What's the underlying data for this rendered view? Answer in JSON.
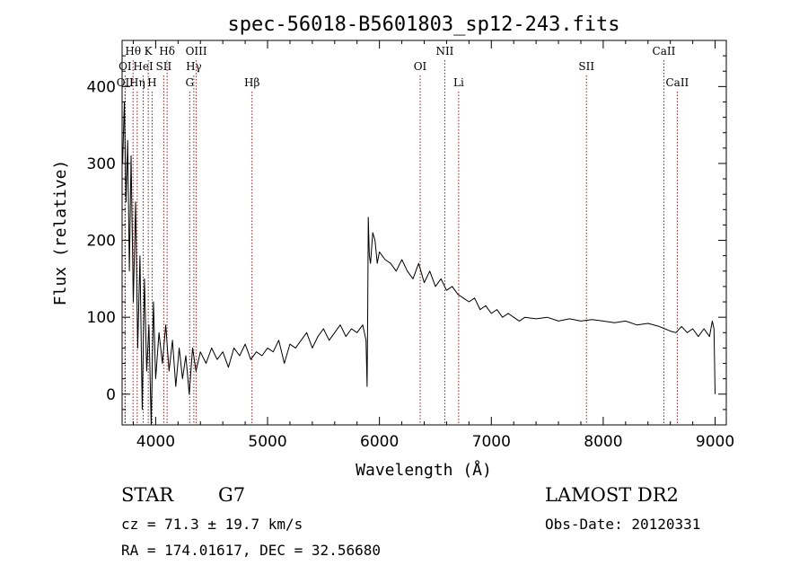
{
  "chart_data": {
    "type": "line",
    "title": "spec-56018-B5601803_sp12-243.fits",
    "xlabel": "Wavelength (Å)",
    "ylabel": "Flux (relative)",
    "xlim": [
      3700,
      9100
    ],
    "ylim": [
      -40,
      460
    ],
    "x_ticks": [
      4000,
      5000,
      6000,
      7000,
      8000,
      9000
    ],
    "y_ticks": [
      0,
      100,
      200,
      300,
      400
    ],
    "x_minor_step": 200,
    "y_minor_step": 20,
    "spectrum": {
      "x": [
        3705,
        3720,
        3735,
        3750,
        3765,
        3780,
        3800,
        3820,
        3840,
        3860,
        3880,
        3900,
        3920,
        3940,
        3960,
        3980,
        4000,
        4030,
        4060,
        4090,
        4120,
        4150,
        4180,
        4210,
        4240,
        4270,
        4300,
        4330,
        4360,
        4400,
        4450,
        4500,
        4550,
        4600,
        4650,
        4700,
        4750,
        4800,
        4850,
        4900,
        4950,
        5000,
        5050,
        5100,
        5150,
        5200,
        5250,
        5300,
        5350,
        5400,
        5450,
        5500,
        5550,
        5600,
        5650,
        5700,
        5750,
        5800,
        5850,
        5880,
        5890,
        5895,
        5900,
        5910,
        5920,
        5940,
        5960,
        5980,
        6000,
        6050,
        6100,
        6150,
        6200,
        6250,
        6300,
        6350,
        6400,
        6450,
        6500,
        6550,
        6600,
        6650,
        6700,
        6750,
        6800,
        6850,
        6900,
        6950,
        7000,
        7050,
        7100,
        7150,
        7200,
        7250,
        7300,
        7400,
        7500,
        7600,
        7700,
        7800,
        7900,
        8000,
        8100,
        8200,
        8300,
        8400,
        8500,
        8550,
        8600,
        8650,
        8700,
        8750,
        8800,
        8850,
        8900,
        8950,
        8975,
        8990,
        9000
      ],
      "y": [
        300,
        380,
        250,
        330,
        160,
        310,
        120,
        250,
        60,
        180,
        -20,
        150,
        30,
        90,
        -40,
        120,
        20,
        80,
        40,
        90,
        30,
        70,
        10,
        60,
        20,
        50,
        0,
        60,
        30,
        55,
        40,
        60,
        45,
        55,
        35,
        60,
        50,
        65,
        45,
        55,
        50,
        60,
        55,
        70,
        40,
        65,
        60,
        70,
        80,
        60,
        75,
        85,
        70,
        80,
        90,
        75,
        85,
        80,
        90,
        70,
        10,
        110,
        230,
        180,
        170,
        210,
        200,
        170,
        185,
        175,
        170,
        160,
        175,
        160,
        150,
        170,
        145,
        160,
        140,
        150,
        135,
        140,
        130,
        125,
        120,
        125,
        110,
        115,
        105,
        110,
        100,
        105,
        100,
        95,
        100,
        98,
        100,
        95,
        98,
        95,
        97,
        95,
        93,
        95,
        90,
        92,
        88,
        85,
        82,
        80,
        88,
        80,
        85,
        75,
        85,
        75,
        95,
        85,
        0
      ]
    },
    "lines": [
      {
        "label": "Hθ",
        "x": 3798,
        "row": 0
      },
      {
        "label": "K",
        "x": 3934,
        "row": 0
      },
      {
        "label": "Hδ",
        "x": 4102,
        "row": 0
      },
      {
        "label": "OIII",
        "x": 4363,
        "row": 0
      },
      {
        "label": "NII",
        "x": 6584,
        "row": 0
      },
      {
        "label": "CaII",
        "x": 8542,
        "row": 0
      },
      {
        "label": "OI",
        "x": 3727,
        "row": 1
      },
      {
        "label": "HeI",
        "x": 3889,
        "row": 1
      },
      {
        "label": "SII",
        "x": 4072,
        "row": 1
      },
      {
        "label": "Hγ",
        "x": 4341,
        "row": 1
      },
      {
        "label": "OI",
        "x": 6364,
        "row": 1
      },
      {
        "label": "SII",
        "x": 7850,
        "row": 1
      },
      {
        "label": "OII",
        "x": 3727,
        "row": 2
      },
      {
        "label": "Hη",
        "x": 3835,
        "row": 2
      },
      {
        "label": "H",
        "x": 3968,
        "row": 2
      },
      {
        "label": "G",
        "x": 4304,
        "row": 2
      },
      {
        "label": "Hβ",
        "x": 4861,
        "row": 2
      },
      {
        "label": "Li",
        "x": 6708,
        "row": 2
      },
      {
        "label": "CaII",
        "x": 8662,
        "row": 2
      }
    ]
  },
  "info": {
    "class_label": "STAR",
    "subclass_label": "G7",
    "survey_label": "LAMOST DR2",
    "cz_text": "cz = 71.3 ± 19.7 km/s",
    "obs_date_text": "Obs-Date: 20120331",
    "radec_text": "RA = 174.01617, DEC =  32.56680"
  },
  "colors": {
    "spectrum": "#000000",
    "marker_line": "#8b1a1a"
  }
}
